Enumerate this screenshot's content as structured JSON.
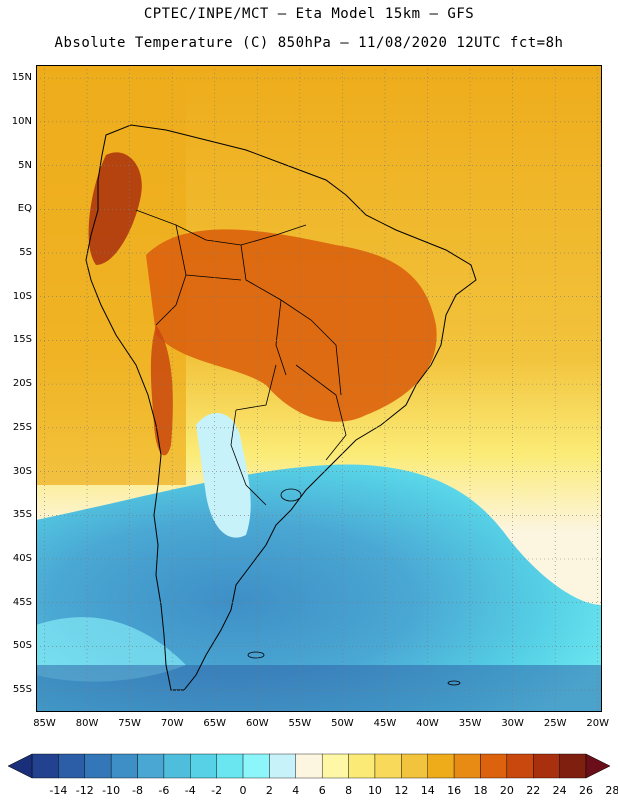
{
  "header": {
    "line1": "CPTEC/INPE/MCT –  Eta Model 15km – GFS",
    "line2": "Absolute Temperature (C) 850hPa – 11/08/2020 12UTC fct=8h"
  },
  "map": {
    "lat_labels": [
      "15N",
      "10N",
      "5N",
      "EQ",
      "5S",
      "10S",
      "15S",
      "20S",
      "25S",
      "30S",
      "35S",
      "40S",
      "45S",
      "50S",
      "55S"
    ],
    "lon_labels": [
      "85W",
      "80W",
      "75W",
      "70W",
      "65W",
      "60W",
      "55W",
      "50W",
      "45W",
      "40W",
      "35W",
      "30W",
      "25W",
      "20W"
    ],
    "lat_values": [
      15,
      10,
      5,
      0,
      -5,
      -10,
      -15,
      -20,
      -25,
      -30,
      -35,
      -40,
      -45,
      -50,
      -55
    ],
    "lon_values": [
      -85,
      -80,
      -75,
      -70,
      -65,
      -60,
      -55,
      -50,
      -45,
      -40,
      -35,
      -30,
      -25,
      -20
    ],
    "extent": {
      "lon_min": -86,
      "lon_max": -19.5,
      "lat_min": -57.5,
      "lat_max": 16.5
    }
  },
  "legend": {
    "ticks": [
      "-14",
      "-12",
      "-10",
      "-8",
      "-6",
      "-4",
      "-2",
      "0",
      "2",
      "4",
      "6",
      "8",
      "10",
      "12",
      "14",
      "16",
      "18",
      "20",
      "22",
      "24",
      "26",
      "28"
    ],
    "colors": [
      "#22418f",
      "#2b5ea6",
      "#3377b8",
      "#3e8fc6",
      "#4aa7d3",
      "#4fbedd",
      "#56d1e6",
      "#6ae6f0",
      "#8df6fb",
      "#c8f2fa",
      "#fcf5df",
      "#fef7a6",
      "#fbeb76",
      "#f8d95a",
      "#f2c33c",
      "#eeac1b",
      "#e88b14",
      "#dc620d",
      "#c9480e",
      "#a9300e",
      "#7f1f10"
    ]
  }
}
